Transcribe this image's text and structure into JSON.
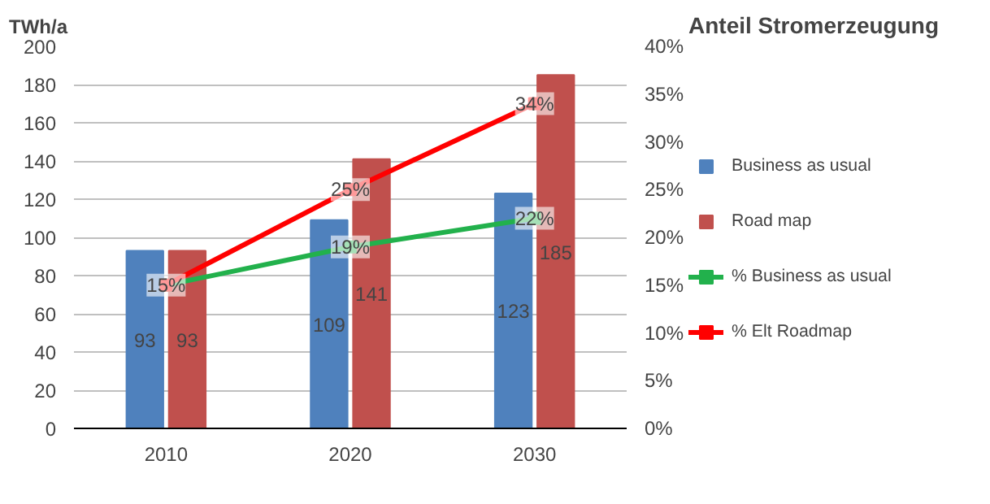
{
  "chart_data": {
    "type": "bar",
    "ylabel": "TWh/a",
    "y2label": "Anteil Stromerzeugung",
    "categories": [
      "2010",
      "2020",
      "2030"
    ],
    "ylim": [
      0,
      200
    ],
    "yticks": [
      0,
      20,
      40,
      60,
      80,
      100,
      120,
      140,
      160,
      180,
      200
    ],
    "y2lim": [
      0,
      40
    ],
    "y2ticks": [
      {
        "value": 0,
        "label": "0%"
      },
      {
        "value": 5,
        "label": "5%"
      },
      {
        "value": 10,
        "label": "10%"
      },
      {
        "value": 15,
        "label": "15%"
      },
      {
        "value": 20,
        "label": "20%"
      },
      {
        "value": 25,
        "label": "25%"
      },
      {
        "value": 30,
        "label": "30%"
      },
      {
        "value": 35,
        "label": "35%"
      },
      {
        "value": 40,
        "label": "40%"
      }
    ],
    "grid": "y",
    "legend": "right",
    "marker": "square",
    "series": [
      {
        "name": "Business as usual",
        "color": "#4f81bd",
        "values": [
          93,
          109,
          123
        ],
        "value_labels": [
          "93",
          "109",
          "123"
        ]
      },
      {
        "name": "Road map",
        "color": "#c0504d",
        "values": [
          93,
          141,
          185
        ],
        "value_labels": [
          "93",
          "141",
          "185"
        ]
      },
      {
        "name": "% Business as usual",
        "type": "line",
        "axis": "y2",
        "color": "#22b14c",
        "values": [
          15,
          19,
          22
        ],
        "value_labels": [
          null,
          "19%",
          "22%"
        ]
      },
      {
        "name": "% Elt Roadmap",
        "type": "line",
        "axis": "y2",
        "color": "#ff0000",
        "values": [
          15,
          25,
          34
        ],
        "value_labels": [
          "15%",
          "25%",
          "34%"
        ]
      }
    ]
  }
}
